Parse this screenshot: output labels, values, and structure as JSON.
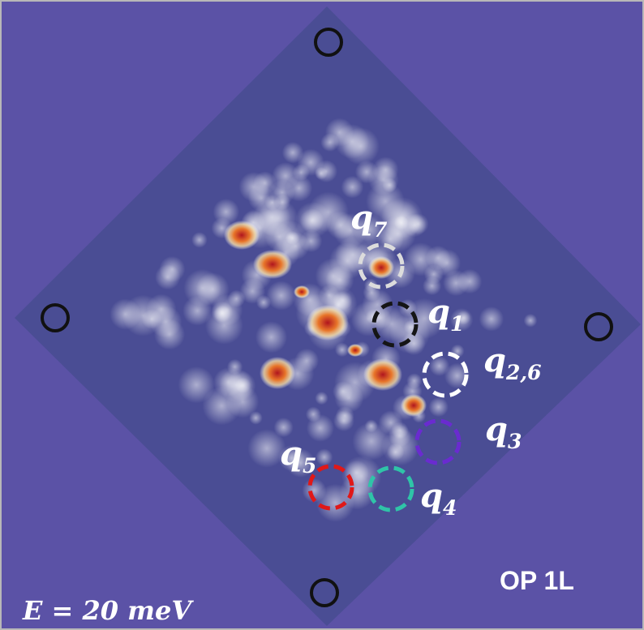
{
  "figure": {
    "annotations": [
      {
        "symbol": "q",
        "subscript": "7"
      },
      {
        "symbol": "q",
        "subscript": "1"
      },
      {
        "symbol": "q",
        "subscript": "2,6"
      },
      {
        "symbol": "q",
        "subscript": "3"
      },
      {
        "symbol": "q",
        "subscript": "4"
      },
      {
        "symbol": "q",
        "subscript": "5"
      }
    ],
    "panel_label": "OP 1L",
    "energy_label": "E = 20 meV"
  }
}
